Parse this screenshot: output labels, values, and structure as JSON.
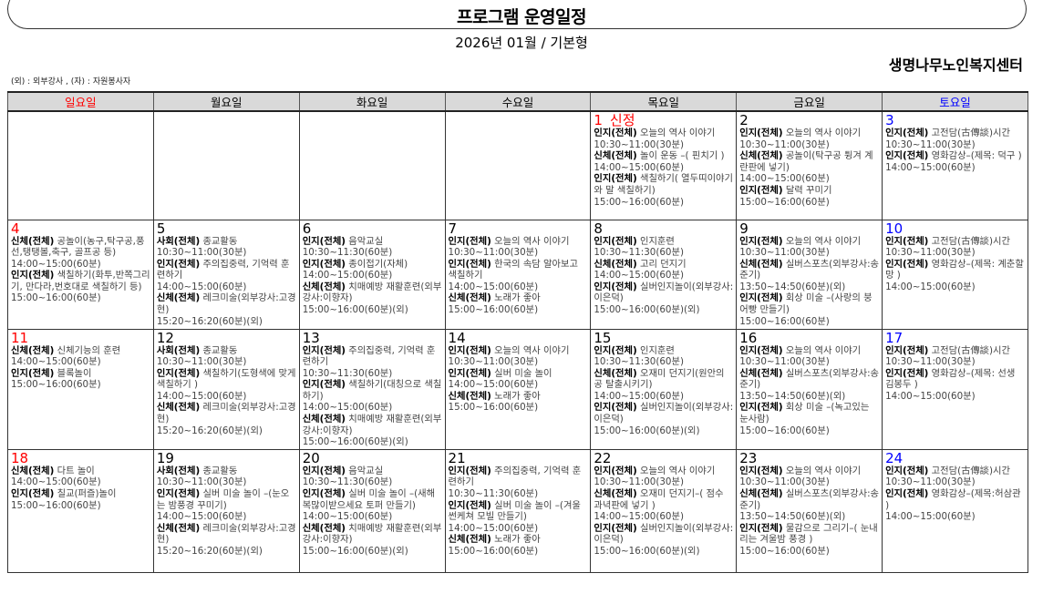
{
  "header": {
    "title": "프로그램 운영일정",
    "subtitle": "2026년 01월 / 기본형",
    "organization": "생명나무노인복지센터",
    "legend": "(외) : 외부강사 , (자) : 자원봉사자"
  },
  "colors": {
    "sunday": "#ff0000",
    "saturday": "#0000ff",
    "weekday": "#000000",
    "header_bg": "#d9d9d9"
  },
  "weekdays": [
    {
      "label": "일요일",
      "color": "#ff0000"
    },
    {
      "label": "월요일",
      "color": "#000000"
    },
    {
      "label": "화요일",
      "color": "#000000"
    },
    {
      "label": "수요일",
      "color": "#000000"
    },
    {
      "label": "목요일",
      "color": "#000000"
    },
    {
      "label": "금요일",
      "color": "#000000"
    },
    {
      "label": "토요일",
      "color": "#0000ff"
    }
  ],
  "weeks": [
    [
      null,
      null,
      null,
      null,
      {
        "day": "1",
        "note": "신정",
        "items": [
          {
            "cat": "인지(전체)",
            "title": "오늘의 역사 이야기",
            "time": "10:30~11:00(30분)"
          },
          {
            "cat": "신체(전체)",
            "title": "놀이 운동 –( 핀치기 )",
            "time": "14:00~15:00(60분)"
          },
          {
            "cat": "인지(전체)",
            "title": "색칠하기( 열두띠이야기와 말 색칠하기)",
            "time": "15:00~16:00(60분)"
          }
        ]
      },
      {
        "day": "2",
        "items": [
          {
            "cat": "인지(전체)",
            "title": "오늘의 역사 이야기",
            "time": "10:30~11:00(30분)"
          },
          {
            "cat": "신체(전체)",
            "title": "공놀이(탁구공 튕겨 계란판에 넣기)",
            "time": "14:00~15:00(60분)"
          },
          {
            "cat": "인지(전체)",
            "title": "달력 꾸미기",
            "time": "15:00~16:00(60분)"
          }
        ]
      },
      {
        "day": "3",
        "items": [
          {
            "cat": "인지(전체)",
            "title": "고전담(古傳談)시간",
            "time": "10:30~11:00(30분)"
          },
          {
            "cat": "인지(전체)",
            "title": "영화감상–(제목: 덕구 )",
            "time": "14:00~15:00(60분)"
          }
        ]
      }
    ],
    [
      {
        "day": "4",
        "items": [
          {
            "cat": "신체(전체)",
            "title": "공놀이(농구,탁구공,풍선,탱탱볼,축구, 골프공 등)",
            "time": "14:00~15:00(60분)"
          },
          {
            "cat": "인지(전체)",
            "title": "색칠하기(화투,반쪽그리기, 만다라,번호대로 색칠하기 등)",
            "time": "15:00~16:00(60분)"
          }
        ]
      },
      {
        "day": "5",
        "items": [
          {
            "cat": "사회(전체)",
            "title": "종교활동",
            "time": "10:30~11:00(30분)"
          },
          {
            "cat": "인지(전체)",
            "title": "주의집중력, 기억력 훈련하기",
            "time": "14:00~15:00(60분)"
          },
          {
            "cat": "신체(전체)",
            "title": "레크미술(외부강사:고경현)",
            "time": "15:20~16:20(60분)(외)"
          }
        ]
      },
      {
        "day": "6",
        "items": [
          {
            "cat": "인지(전체)",
            "title": "음악교실",
            "time": "10:30~11:30(60분)"
          },
          {
            "cat": "인지(전체)",
            "title": "종이접기(자체)",
            "time": "14:00~15:00(60분)"
          },
          {
            "cat": "신체(전체)",
            "title": "치매예방 재활훈련(외부강사:이향자)",
            "time": "15:00~16:00(60분)(외)"
          }
        ]
      },
      {
        "day": "7",
        "items": [
          {
            "cat": "인지(전체)",
            "title": "오늘의 역사 이야기",
            "time": "10:30~11:00(30분)"
          },
          {
            "cat": "인지(전체)",
            "title": "한국의 속담 알아보고 색칠하기",
            "time": "14:00~15:00(60분)"
          },
          {
            "cat": "신체(전체)",
            "title": "노래가 좋아",
            "time": "15:00~16:00(60분)"
          }
        ]
      },
      {
        "day": "8",
        "items": [
          {
            "cat": "인지(전체)",
            "title": "인지훈련",
            "time": "10:30~11:30(60분)"
          },
          {
            "cat": "신체(전체)",
            "title": "고리 던지기",
            "time": "14:00~15:00(60분)"
          },
          {
            "cat": "인지(전체)",
            "title": "실버인지놀이(외부강사:이은덕)",
            "time": "15:00~16:00(60분)(외)"
          }
        ]
      },
      {
        "day": "9",
        "items": [
          {
            "cat": "인지(전체)",
            "title": "오늘의 역사 이야기",
            "time": "10:30~11:00(30분)"
          },
          {
            "cat": "신체(전체)",
            "title": "실버스포츠(외부강사:송준기)",
            "time": "13:50~14:50(60분)(외)"
          },
          {
            "cat": "인지(전체)",
            "title": "회상 미술 –(사랑의 붕어빵 만들기)",
            "time": "15:00~16:00(60분)"
          }
        ]
      },
      {
        "day": "10",
        "items": [
          {
            "cat": "인지(전체)",
            "title": "고전담(古傳談)시간",
            "time": "10:30~11:00(30분)"
          },
          {
            "cat": "인지(전체)",
            "title": "영화감상–(제목: 계춘할망 )",
            "time": "14:00~15:00(60분)"
          }
        ]
      }
    ],
    [
      {
        "day": "11",
        "items": [
          {
            "cat": "신체(전체)",
            "title": "신체기능의 훈련",
            "time": "14:00~15:00(60분)"
          },
          {
            "cat": "인지(전체)",
            "title": "블록놀이",
            "time": "15:00~16:00(60분)"
          }
        ]
      },
      {
        "day": "12",
        "items": [
          {
            "cat": "사회(전체)",
            "title": "종교활동",
            "time": "10:30~11:00(30분)"
          },
          {
            "cat": "인지(전체)",
            "title": "색칠하기(도형색에 맞게 색칠하기 )",
            "time": "14:00~15:00(60분)"
          },
          {
            "cat": "신체(전체)",
            "title": "레크미술(외부강사:고경현)",
            "time": "15:20~16:20(60분)(외)"
          }
        ]
      },
      {
        "day": "13",
        "items": [
          {
            "cat": "인지(전체)",
            "title": "주의집중력, 기억력 훈련하기",
            "time": "10:30~11:30(60분)"
          },
          {
            "cat": "인지(전체)",
            "title": "색칠하기(대칭으로 색칠하기)",
            "time": "14:00~15:00(60분)"
          },
          {
            "cat": "신체(전체)",
            "title": "치매예방 재활훈련(외부강사:이향자)",
            "time": "15:00~16:00(60분)(외)"
          }
        ]
      },
      {
        "day": "14",
        "items": [
          {
            "cat": "인지(전체)",
            "title": "오늘의 역사 이야기",
            "time": "10:30~11:00(30분)"
          },
          {
            "cat": "인지(전체)",
            "title": "실버 미술 놀이",
            "time": "14:00~15:00(60분)"
          },
          {
            "cat": "신체(전체)",
            "title": "노래가 좋아",
            "time": "15:00~16:00(60분)"
          }
        ]
      },
      {
        "day": "15",
        "items": [
          {
            "cat": "인지(전체)",
            "title": "인지훈련",
            "time": "10:30~11:30(60분)"
          },
          {
            "cat": "신체(전체)",
            "title": "오재미 던지기(원안의 공 탈출시키기)",
            "time": "14:00~15:00(60분)"
          },
          {
            "cat": "인지(전체)",
            "title": "실버인지놀이(외부강사:이은덕)",
            "time": "15:00~16:00(60분)(외)"
          }
        ]
      },
      {
        "day": "16",
        "items": [
          {
            "cat": "인지(전체)",
            "title": "오늘의 역사 이야기",
            "time": "10:30~11:00(30분)"
          },
          {
            "cat": "신체(전체)",
            "title": "실버스포츠(외부강사:송준기)",
            "time": "13:50~14:50(60분)(외)"
          },
          {
            "cat": "인지(전체)",
            "title": "회상 미술 –(녹고있는 눈사람)",
            "time": "15:00~16:00(60분)"
          }
        ]
      },
      {
        "day": "17",
        "items": [
          {
            "cat": "인지(전체)",
            "title": "고전담(古傳談)시간",
            "time": "10:30~11:00(30분)"
          },
          {
            "cat": "인지(전체)",
            "title": "영화감상–(제목: 선생 김봉두 )",
            "time": "14:00~15:00(60분)"
          }
        ]
      }
    ],
    [
      {
        "day": "18",
        "items": [
          {
            "cat": "신체(전체)",
            "title": "다트 놀이",
            "time": "14:00~15:00(60분)"
          },
          {
            "cat": "인지(전체)",
            "title": "칠교(퍼즐)놀이",
            "time": "15:00~16:00(60분)"
          }
        ]
      },
      {
        "day": "19",
        "items": [
          {
            "cat": "사회(전체)",
            "title": "종교활동",
            "time": "10:30~11:00(30분)"
          },
          {
            "cat": "인지(전체)",
            "title": "실버 미술 놀이 –(눈오는 밤풍경 꾸미기)",
            "time": "14:00~15:00(60분)"
          },
          {
            "cat": "신체(전체)",
            "title": "레크미술(외부강사:고경현)",
            "time": "15:20~16:20(60분)(외)"
          }
        ]
      },
      {
        "day": "20",
        "items": [
          {
            "cat": "인지(전체)",
            "title": "음악교실",
            "time": "10:30~11:30(60분)"
          },
          {
            "cat": "인지(전체)",
            "title": "실버 미술 놀이 –(새해복많이받으세요 토퍼 만들기)",
            "time": "14:00~15:00(60분)"
          },
          {
            "cat": "신체(전체)",
            "title": "치매예방 재활훈련(외부강사:이향자)",
            "time": "15:00~16:00(60분)(외)"
          }
        ]
      },
      {
        "day": "21",
        "items": [
          {
            "cat": "인지(전체)",
            "title": "주의집중력, 기억력 훈련하기",
            "time": "10:30~11:30(60분)"
          },
          {
            "cat": "인지(전체)",
            "title": "실버 미술 놀이 –(겨울 썬케쳐 모빌 만들기)",
            "time": "14:00~15:00(60분)"
          },
          {
            "cat": "신체(전체)",
            "title": "노래가 좋아",
            "time": "15:00~16:00(60분)"
          }
        ]
      },
      {
        "day": "22",
        "items": [
          {
            "cat": "인지(전체)",
            "title": "오늘의 역사 이야기",
            "time": "10:30~11:00(30분)"
          },
          {
            "cat": "신체(전체)",
            "title": "오재미 던지기–( 점수 과녁판에 넣기 )",
            "time": "14:00~15:00(60분)"
          },
          {
            "cat": "인지(전체)",
            "title": "실버인지놀이(외부강사:이은덕)",
            "time": "15:00~16:00(60분)(외)"
          }
        ]
      },
      {
        "day": "23",
        "items": [
          {
            "cat": "인지(전체)",
            "title": "오늘의 역사 이야기",
            "time": "10:30~11:00(30분)"
          },
          {
            "cat": "신체(전체)",
            "title": "실버스포츠(외부강사:송준기)",
            "time": "13:50~14:50(60분)(외)"
          },
          {
            "cat": "인지(전체)",
            "title": "물감으로 그리기–( 눈내리는 겨울밤 풍경 )",
            "time": "15:00~16:00(60분)"
          }
        ]
      },
      {
        "day": "24",
        "items": [
          {
            "cat": "인지(전체)",
            "title": "고전담(古傳談)시간",
            "time": "10:30~11:00(30분)"
          },
          {
            "cat": "인지(전체)",
            "title": "영화감상–(제목:허삼관 )",
            "time": "14:00~15:00(60분)"
          }
        ]
      }
    ]
  ]
}
